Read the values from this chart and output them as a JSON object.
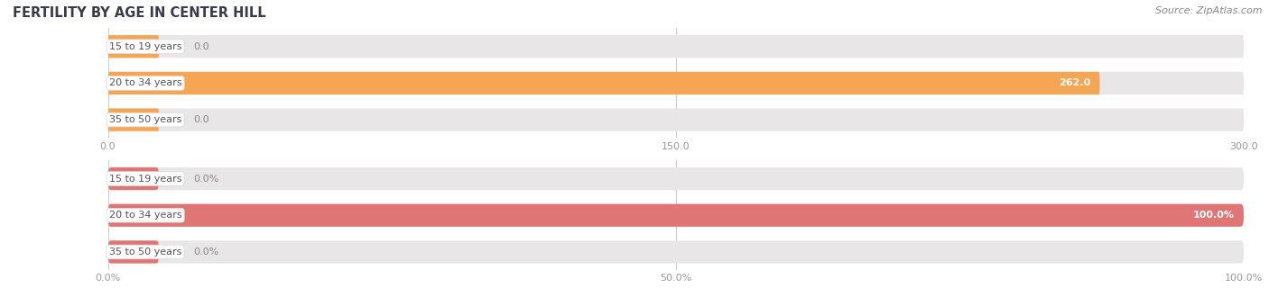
{
  "title": "FERTILITY BY AGE IN CENTER HILL",
  "source": "Source: ZipAtlas.com",
  "top_chart": {
    "categories": [
      "15 to 19 years",
      "20 to 34 years",
      "35 to 50 years"
    ],
    "values": [
      0.0,
      262.0,
      0.0
    ],
    "bar_color": "#F5A553",
    "track_color": "#E8E6E6",
    "xlim": [
      0,
      300
    ],
    "xticks": [
      0.0,
      150.0,
      300.0
    ],
    "xtick_labels": [
      "0.0",
      "150.0",
      "300.0"
    ]
  },
  "bottom_chart": {
    "categories": [
      "15 to 19 years",
      "20 to 34 years",
      "35 to 50 years"
    ],
    "values": [
      0.0,
      100.0,
      0.0
    ],
    "bar_color": "#E07575",
    "track_color": "#E8E6E6",
    "xlim": [
      0,
      100
    ],
    "xticks": [
      0.0,
      50.0,
      100.0
    ],
    "xtick_labels": [
      "0.0%",
      "50.0%",
      "100.0%"
    ]
  },
  "title_color": "#3A3A4A",
  "title_fontsize": 10.5,
  "source_fontsize": 8,
  "tick_fontsize": 8,
  "label_fontsize": 8,
  "val_fontsize": 8,
  "fig_bg_color": "#FFFFFF",
  "label_pill_top_color": "#F5C89A",
  "label_pill_bottom_color": "#EFA0A0",
  "label_text_color": "#555555",
  "val_inside_color": "#FFFFFF",
  "val_outside_color": "#888888",
  "tick_color": "#999999",
  "grid_color": "#CCCCCC"
}
